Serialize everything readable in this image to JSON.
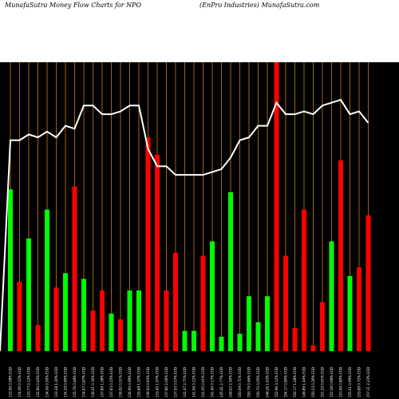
{
  "header": {
    "left": "MunafaSutra  Money Flow  Charts for NPO",
    "right": "(EnPro  Industries) MunafaSutra.com"
  },
  "colors": {
    "background": "#000000",
    "header_bg": "#ffffff",
    "grid": "#cc7a1a",
    "up": "#00ff00",
    "down": "#ff0000",
    "line": "#ffffff"
  },
  "chart_data": {
    "type": "bar",
    "title": "MunafaSutra  Money Flow  Charts for NPO",
    "subtitle": "(EnPro  Industries) MunafaSutra.com",
    "categories": [
      "133.95  0.08% EOD",
      "134.06  0.22% EOD",
      "133.77  0.12% EOD",
      "132.90  0.45% EOD",
      "134.06  0.50% EOD",
      "133.28  1.30% EOD",
      "134.29  0.85% EOD",
      "135.76  0.48% EOD",
      "134.67  0.87% EOD",
      "136.01  0.16% EOD",
      "137.89  1.38% EOD",
      "137.63  0.15% EOD",
      "136.92  0.51% EOD",
      "136.90  0.99% EOD",
      "135.68  1.37% EOD",
      "136.93  0.93% EOD",
      "133.45  1.97% EOD",
      "137.80  2.06% EOD",
      "137.93  0.07% EOD",
      "141.47  2.71% EOD",
      "141.06  0.22% EOD",
      "141.05  0.01% EOD",
      "141.40  0.17% EOD",
      "145.41  2.77% EOD",
      "149.02  2.50% EOD",
      "150.09  0.71% EOD",
      "150.79  0.46% EOD",
      "150.72  0.05% EOD",
      "148.26  1.63% EOD",
      "152.96  3.12% EOD",
      "154.17  0.80% EOD",
      "152.17  1.28% EOD",
      "149.89  1.44% EOD",
      "150.33  0.26% EOD",
      "151.25  0.61% EOD",
      "152.28  0.68% EOD",
      "153.49  0.80% EOD",
      "155.01  0.99% EOD",
      "153.89  0.72% EOD",
      "157.31  2.23% EOD"
    ],
    "values": [
      56,
      24,
      39,
      9,
      49,
      22,
      27,
      57,
      25,
      14,
      21,
      13,
      11,
      21,
      21,
      74,
      68,
      21,
      34,
      7,
      7,
      33,
      38,
      5,
      55,
      6,
      19,
      10,
      19,
      100,
      33,
      8,
      49,
      2,
      17,
      38,
      66,
      26,
      29,
      47
    ],
    "colors": [
      "up",
      "down",
      "up",
      "down",
      "up",
      "down",
      "up",
      "down",
      "up",
      "down",
      "down",
      "up",
      "down",
      "up",
      "up",
      "down",
      "down",
      "down",
      "down",
      "up",
      "up",
      "down",
      "up",
      "up",
      "up",
      "up",
      "up",
      "up",
      "up",
      "down",
      "down",
      "down",
      "down",
      "down",
      "down",
      "up",
      "down",
      "up",
      "down",
      "down"
    ],
    "line": [
      73,
      73,
      75,
      74,
      76,
      74,
      78,
      77,
      85,
      85,
      82,
      82,
      83,
      85,
      85,
      70,
      64,
      64,
      61,
      61,
      61,
      61,
      62,
      63,
      67,
      73,
      74,
      78,
      78,
      86,
      82,
      82,
      83,
      82,
      85,
      86,
      87,
      82,
      83,
      79
    ],
    "ylim": [
      0,
      100
    ],
    "grid": true
  }
}
